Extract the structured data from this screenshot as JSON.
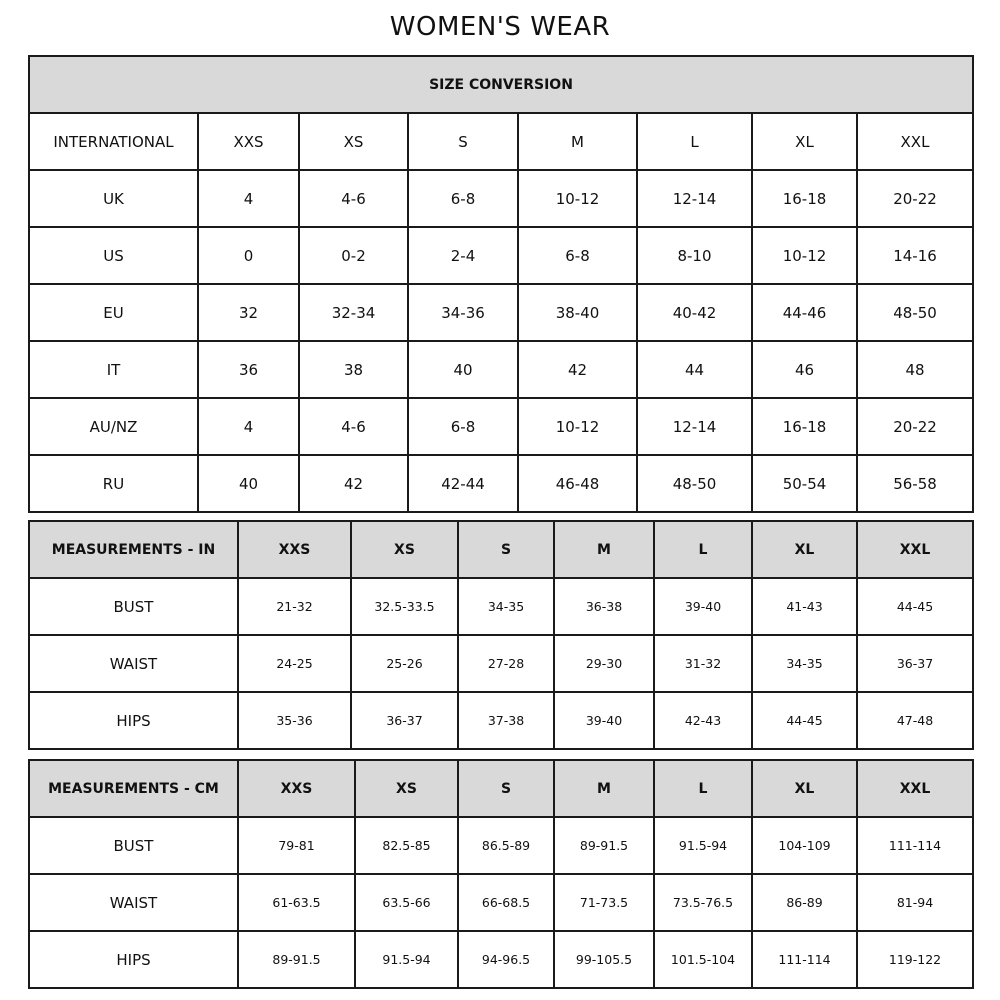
{
  "title": "WOMEN'S WEAR",
  "size_conversion": {
    "header": "SIZE CONVERSION",
    "columns": [
      "INTERNATIONAL",
      "XXS",
      "XS",
      "S",
      "M",
      "L",
      "XL",
      "XXL"
    ],
    "rows": [
      {
        "label": "UK",
        "values": [
          "4",
          "4-6",
          "6-8",
          "10-12",
          "12-14",
          "16-18",
          "20-22"
        ]
      },
      {
        "label": "US",
        "values": [
          "0",
          "0-2",
          "2-4",
          "6-8",
          "8-10",
          "10-12",
          "14-16"
        ]
      },
      {
        "label": "EU",
        "values": [
          "32",
          "32-34",
          "34-36",
          "38-40",
          "40-42",
          "44-46",
          "48-50"
        ]
      },
      {
        "label": "IT",
        "values": [
          "36",
          "38",
          "40",
          "42",
          "44",
          "46",
          "48"
        ]
      },
      {
        "label": "AU/NZ",
        "values": [
          "4",
          "4-6",
          "6-8",
          "10-12",
          "12-14",
          "16-18",
          "20-22"
        ]
      },
      {
        "label": "RU",
        "values": [
          "40",
          "42",
          "42-44",
          "46-48",
          "48-50",
          "50-54",
          "56-58"
        ]
      }
    ]
  },
  "measurements_in": {
    "columns": [
      "MEASUREMENTS - IN",
      "XXS",
      "XS",
      "S",
      "M",
      "L",
      "XL",
      "XXL"
    ],
    "rows": [
      {
        "label": "BUST",
        "values": [
          "21-32",
          "32.5-33.5",
          "34-35",
          "36-38",
          "39-40",
          "41-43",
          "44-45"
        ]
      },
      {
        "label": "WAIST",
        "values": [
          "24-25",
          "25-26",
          "27-28",
          "29-30",
          "31-32",
          "34-35",
          "36-37"
        ]
      },
      {
        "label": "HIPS",
        "values": [
          "35-36",
          "36-37",
          "37-38",
          "39-40",
          "42-43",
          "44-45",
          "47-48"
        ]
      }
    ]
  },
  "measurements_cm": {
    "columns": [
      "MEASUREMENTS - CM",
      "XXS",
      "XS",
      "S",
      "M",
      "L",
      "XL",
      "XXL"
    ],
    "rows": [
      {
        "label": "BUST",
        "values": [
          "79-81",
          "82.5-85",
          "86.5-89",
          "89-91.5",
          "91.5-94",
          "104-109",
          "111-114"
        ]
      },
      {
        "label": "WAIST",
        "values": [
          "61-63.5",
          "63.5-66",
          "66-68.5",
          "71-73.5",
          "73.5-76.5",
          "86-89",
          "81-94"
        ]
      },
      {
        "label": "HIPS",
        "values": [
          "89-91.5",
          "91.5-94",
          "94-96.5",
          "99-105.5",
          "101.5-104",
          "111-114",
          "119-122"
        ]
      }
    ]
  },
  "colors": {
    "header_bg": "#d9d9d9",
    "border": "#1a1a1a"
  }
}
